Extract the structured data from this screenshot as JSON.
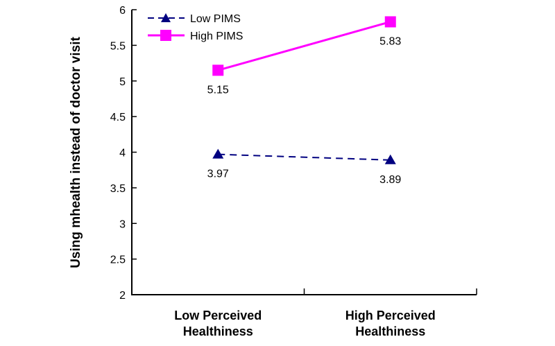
{
  "chart_data": {
    "type": "line",
    "title": "",
    "xlabel": "",
    "ylabel": "Using mhealth instead of doctor visit",
    "ylim": [
      2,
      6
    ],
    "yticks": [
      2,
      2.5,
      3,
      3.5,
      4,
      4.5,
      5,
      5.5,
      6
    ],
    "grid": false,
    "legend_position": "top-left",
    "background": "#FFFFFF",
    "axis_color": "#000000",
    "text_color": "#000000",
    "categories": [
      [
        "Low Perceived",
        "Healthiness"
      ],
      [
        "High Perceived",
        "Healthiness"
      ]
    ],
    "series": [
      {
        "name": "Low PIMS",
        "values": [
          3.97,
          3.89
        ],
        "labels": [
          "3.97",
          "3.89"
        ],
        "color": "#000080",
        "marker": "triangle",
        "line_style": "dashed"
      },
      {
        "name": "High PIMS",
        "values": [
          5.15,
          5.83
        ],
        "labels": [
          "5.15",
          "5.83"
        ],
        "color": "#FF00FF",
        "marker": "square",
        "line_style": "solid"
      }
    ]
  }
}
